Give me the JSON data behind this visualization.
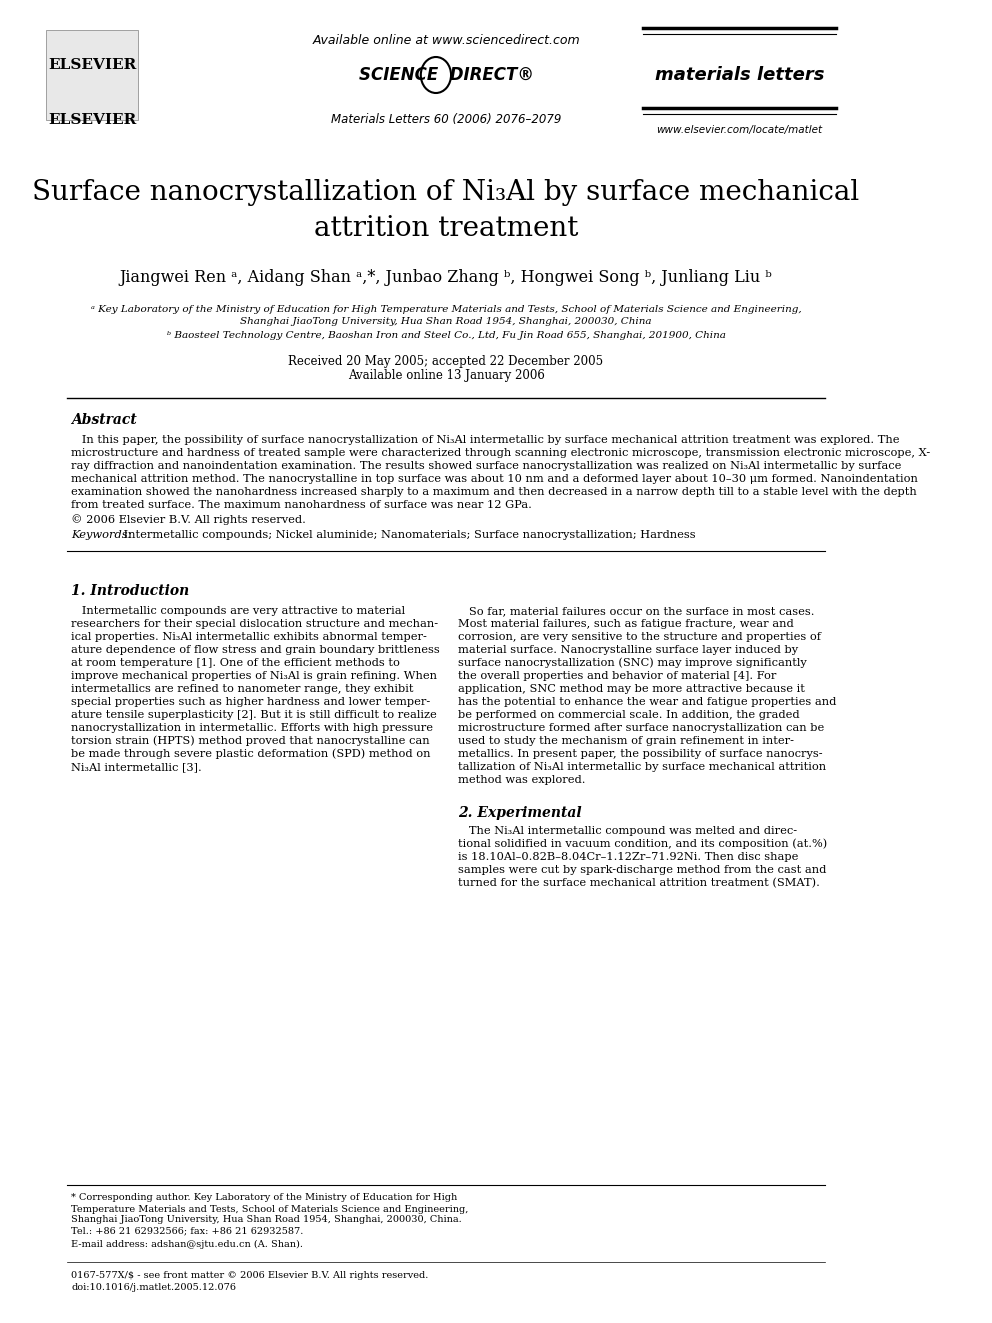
{
  "page_bg": "#ffffff",
  "title_line1": "Surface nanocrystallization of Ni",
  "title_subscript": "3",
  "title_line1b": "Al by surface mechanical",
  "title_line2": "attrition treatment",
  "authors": "Jiangwei Ren ᵃ, Aidang Shan ᵃ,*, Junbao Zhang ᵇ, Hongwei Song ᵇ, Junliang Liu ᵇ",
  "affil_a": "ᵃ Key Laboratory of the Ministry of Education for High Temperature Materials and Tests, School of Materials Science and Engineering,",
  "affil_a2": "Shanghai JiaoTong University, Hua Shan Road 1954, Shanghai, 200030, China",
  "affil_b": "ᵇ Baosteel Technology Centre, Baoshan Iron and Steel Co., Ltd, Fu Jin Road 655, Shanghai, 201900, China",
  "received": "Received 20 May 2005; accepted 22 December 2005",
  "available": "Available online 13 January 2006",
  "header_available": "Available online at www.sciencedirect.com",
  "journal_ref": "Materials Letters 60 (2006) 2076–2079",
  "journal_name": "materials letters",
  "journal_url": "www.elsevier.com/locate/matlet",
  "elsevier_text": "ELSEVIER",
  "abstract_title": "Abstract",
  "abstract_text": "In this paper, the possibility of surface nanocrystallization of Ni₃Al intermetallic by surface mechanical attrition treatment was explored. The microstructure and hardness of treated sample were characterized through scanning electronic microscope, transmission electronic microscope, X-ray diffraction and nanoindentation examination. The results showed surface nanocrystallization was realized on Ni₃Al intermetallic by surface mechanical attrition method. The nanocrystalline in top surface was about 10 nm and a deformed layer about 10–30 μm formed. Nanoindentation examination showed the nanohardness increased sharply to a maximum and then decreased in a narrow depth till to a stable level with the depth from treated surface. The maximum nanohardness of surface was near 12 GPa.",
  "copyright": "© 2006 Elsevier B.V. All rights reserved.",
  "keywords_label": "Keywords:",
  "keywords_text": " Intermetallic compounds; Nickel aluminide; Nanomaterials; Surface nanocrystallization; Hardness",
  "section1_title": "1. Introduction",
  "intro_left": "Intermetallic compounds are very attractive to material researchers for their special dislocation structure and mechanical properties. Ni₃Al intermetallic exhibits abnormal temperature dependence of flow stress and grain boundary brittleness at room temperature [1]. One of the efficient methods to improve mechanical properties of Ni₃Al is grain refining. When intermetallics are refined to nanometer range, they exhibit special properties such as higher hardness and lower temperature tensile superplasticity [2]. But it is still difficult to realize nanocrystallization in intermetallic. Efforts with high pressure torsion strain (HPTS) method proved that nanocrystalline can be made through severe plastic deformation (SPD) method on Ni₃Al intermetallic [3].",
  "intro_right": "So far, material failures occur on the surface in most cases. Most material failures, such as fatigue fracture, wear and corrosion, are very sensitive to the structure and properties of material surface. Nanocrystalline surface layer induced by surface nanocrystallization (SNC) may improve significantly the overall properties and behavior of material [4]. For application, SNC method may be more attractive because it has the potential to enhance the wear and fatigue properties and be performed on commercial scale. In addition, the graded microstructure formed after surface nanocrystallization can be used to study the mechanism of grain refinement in intermetallics. In present paper, the possibility of surface nanocrystallization of Ni₃Al intermetallic by surface mechanical attrition method was explored.",
  "section2_title": "2. Experimental",
  "exp_right": "The Ni₃Al intermetallic compound was melted and directional solidified in vacuum condition, and its composition (at.%) is 18.10Al–0.82B–8.04Cr–1.12Zr–71.92Ni. Then disc shape samples were cut by spark-discharge method from the cast and turned for the surface mechanical attrition treatment (SMAT).",
  "footnote_star": "* Corresponding author. Key Laboratory of the Ministry of Education for High Temperature Materials and Tests, School of Materials Science and Engineering, Shanghai JiaoTong University, Hua Shan Road 1954, Shanghai, 200030, China. Tel.: +86 21 62932566; fax: +86 21 62932587.",
  "footnote_email": "E-mail address: adshan@sjtu.edu.cn (A. Shan).",
  "issn": "0167-577X/$ - see front matter © 2006 Elsevier B.V. All rights reserved.",
  "doi": "doi:10.1016/j.matlet.2005.12.076"
}
